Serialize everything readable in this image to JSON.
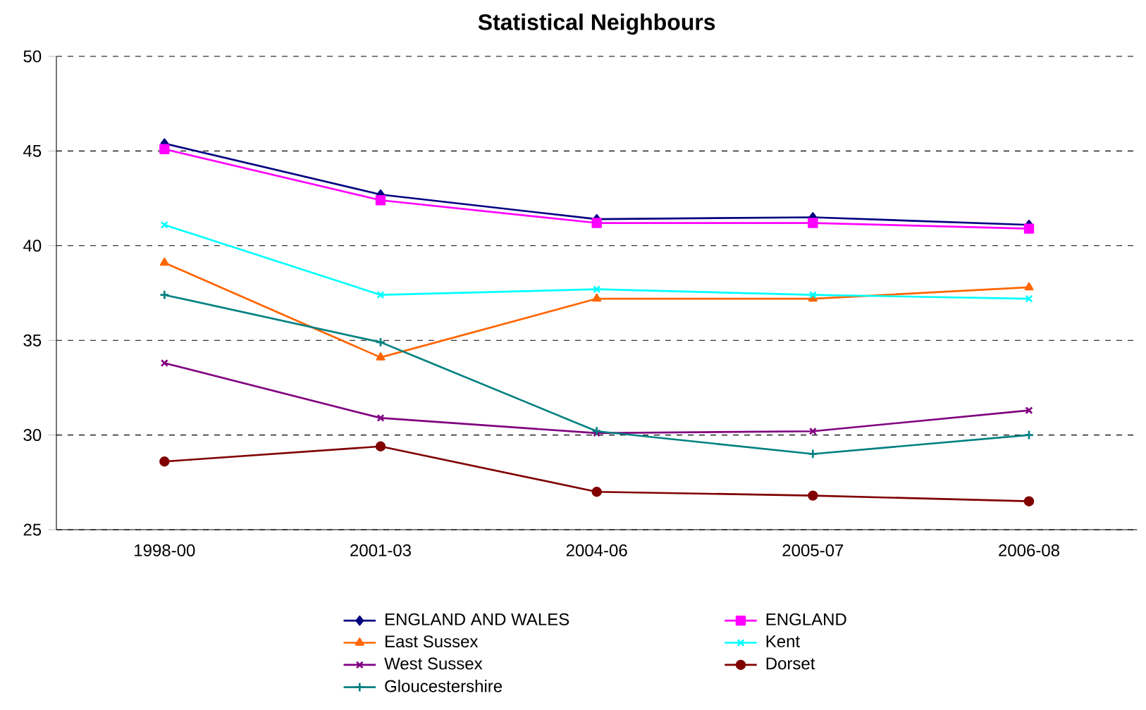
{
  "chart_data": {
    "type": "line",
    "title": "Statistical Neighbours",
    "categories": [
      "1998-00",
      "2001-03",
      "2004-06",
      "2005-07",
      "2006-08"
    ],
    "series": [
      {
        "name": "ENGLAND AND WALES",
        "color": "#000080",
        "marker": "diamond",
        "values": [
          45.4,
          42.7,
          41.4,
          41.5,
          41.1
        ]
      },
      {
        "name": "ENGLAND",
        "color": "#ff00ff",
        "marker": "square",
        "values": [
          45.1,
          42.4,
          41.2,
          41.2,
          40.9
        ]
      },
      {
        "name": "East Sussex",
        "color": "#ff6600",
        "marker": "triangle",
        "values": [
          39.1,
          34.1,
          37.2,
          37.2,
          37.8
        ]
      },
      {
        "name": "Kent",
        "color": "#00ffff",
        "marker": "cross",
        "values": [
          41.1,
          37.4,
          37.7,
          37.4,
          37.2
        ]
      },
      {
        "name": "West Sussex",
        "color": "#800080",
        "marker": "cross",
        "values": [
          33.8,
          30.9,
          30.1,
          30.2,
          31.3
        ]
      },
      {
        "name": "Dorset",
        "color": "#800000",
        "marker": "circle",
        "values": [
          28.6,
          29.4,
          27.0,
          26.8,
          26.5
        ]
      },
      {
        "name": "Gloucestershire",
        "color": "#008080",
        "marker": "plus",
        "values": [
          37.4,
          34.9,
          30.2,
          29.0,
          30.0
        ]
      }
    ],
    "ylim": [
      25,
      50
    ],
    "yticks": [
      25,
      30,
      35,
      40,
      45,
      50
    ],
    "grid": "y",
    "legend": "bottom",
    "line_style": "solid"
  }
}
